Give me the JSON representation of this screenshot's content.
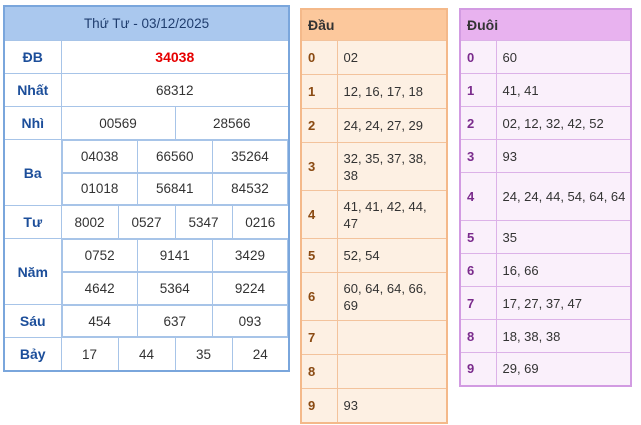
{
  "results": {
    "title": "Thứ Tư - 03/12/2025",
    "db": {
      "label": "ĐB",
      "values": [
        "34038"
      ]
    },
    "nhat": {
      "label": "Nhất",
      "values": [
        "68312"
      ]
    },
    "nhi": {
      "label": "Nhì",
      "values": [
        "00569",
        "28566"
      ]
    },
    "ba": {
      "label": "Ba",
      "values": [
        "04038",
        "66560",
        "35264",
        "01018",
        "56841",
        "84532"
      ]
    },
    "tu": {
      "label": "Tư",
      "values": [
        "8002",
        "0527",
        "5347",
        "0216"
      ]
    },
    "nam": {
      "label": "Năm",
      "values": [
        "0752",
        "9141",
        "3429",
        "4642",
        "5364",
        "9224"
      ]
    },
    "sau": {
      "label": "Sáu",
      "values": [
        "454",
        "637",
        "093"
      ]
    },
    "bay": {
      "label": "Bảy",
      "values": [
        "17",
        "44",
        "35",
        "24"
      ]
    }
  },
  "dau": {
    "header": "Đầu",
    "rows": [
      {
        "digit": "0",
        "values": "02"
      },
      {
        "digit": "1",
        "values": "12, 16, 17, 18"
      },
      {
        "digit": "2",
        "values": "24, 24, 27, 29"
      },
      {
        "digit": "3",
        "values": "32, 35, 37, 38, 38"
      },
      {
        "digit": "4",
        "values": "41, 41, 42, 44, 47"
      },
      {
        "digit": "5",
        "values": "52, 54"
      },
      {
        "digit": "6",
        "values": "60, 64, 64, 66, 69"
      },
      {
        "digit": "7",
        "values": ""
      },
      {
        "digit": "8",
        "values": ""
      },
      {
        "digit": "9",
        "values": "93"
      }
    ]
  },
  "duoi": {
    "header": "Đuôi",
    "rows": [
      {
        "digit": "0",
        "values": "60"
      },
      {
        "digit": "1",
        "values": "41, 41"
      },
      {
        "digit": "2",
        "values": "02, 12, 32, 42, 52"
      },
      {
        "digit": "3",
        "values": "93"
      },
      {
        "digit": "4",
        "values": "24, 24, 44, 54, 64, 64"
      },
      {
        "digit": "5",
        "values": "35"
      },
      {
        "digit": "6",
        "values": "16, 66"
      },
      {
        "digit": "7",
        "values": "17, 27, 37, 47"
      },
      {
        "digit": "8",
        "values": "18, 38, 38"
      },
      {
        "digit": "9",
        "values": "29, 69"
      }
    ]
  },
  "colors": {
    "header_blue": "#aac8ee",
    "label_blue": "#1c4e9a",
    "special_prize_red": "#e60000",
    "dau_header": "#fcc89c",
    "duoi_header": "#e8b2ef"
  }
}
